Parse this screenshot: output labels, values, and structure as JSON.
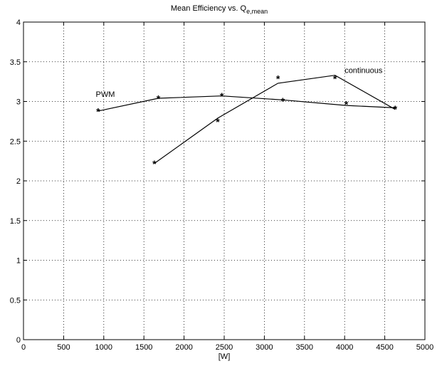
{
  "chart_data": {
    "type": "line",
    "title": "Mean Efficiency vs. Q",
    "title_subscript": "e,mean",
    "xlabel": "[W]",
    "ylabel": "",
    "xlim": [
      0,
      5000
    ],
    "ylim": [
      0,
      4
    ],
    "x_ticks": [
      "0",
      "500",
      "1000",
      "1500",
      "2000",
      "2500",
      "3000",
      "3500",
      "4000",
      "4500",
      "5000"
    ],
    "y_ticks": [
      "0",
      "0.5",
      "1",
      "1.5",
      "2",
      "2.5",
      "3",
      "3.5",
      "4"
    ],
    "grid": true,
    "line_color": "#000000",
    "series": [
      {
        "name": "PWM",
        "points": [
          [
            930,
            2.88
          ],
          [
            1680,
            3.04
          ],
          [
            2470,
            3.07
          ],
          [
            3230,
            3.01
          ],
          [
            4020,
            2.97
          ],
          [
            4630,
            2.91
          ]
        ],
        "fit": [
          [
            930,
            2.88
          ],
          [
            1680,
            3.04
          ],
          [
            2470,
            3.07
          ],
          [
            3230,
            3.02
          ],
          [
            4020,
            2.95
          ],
          [
            4630,
            2.92
          ]
        ]
      },
      {
        "name": "continuous",
        "points": [
          [
            1630,
            2.22
          ],
          [
            2420,
            2.75
          ],
          [
            3170,
            3.29
          ],
          [
            3880,
            3.29
          ],
          [
            4630,
            2.91
          ]
        ],
        "fit": [
          [
            1630,
            2.22
          ],
          [
            2420,
            2.79
          ],
          [
            3170,
            3.23
          ],
          [
            3880,
            3.33
          ],
          [
            4630,
            2.9
          ]
        ]
      }
    ]
  }
}
